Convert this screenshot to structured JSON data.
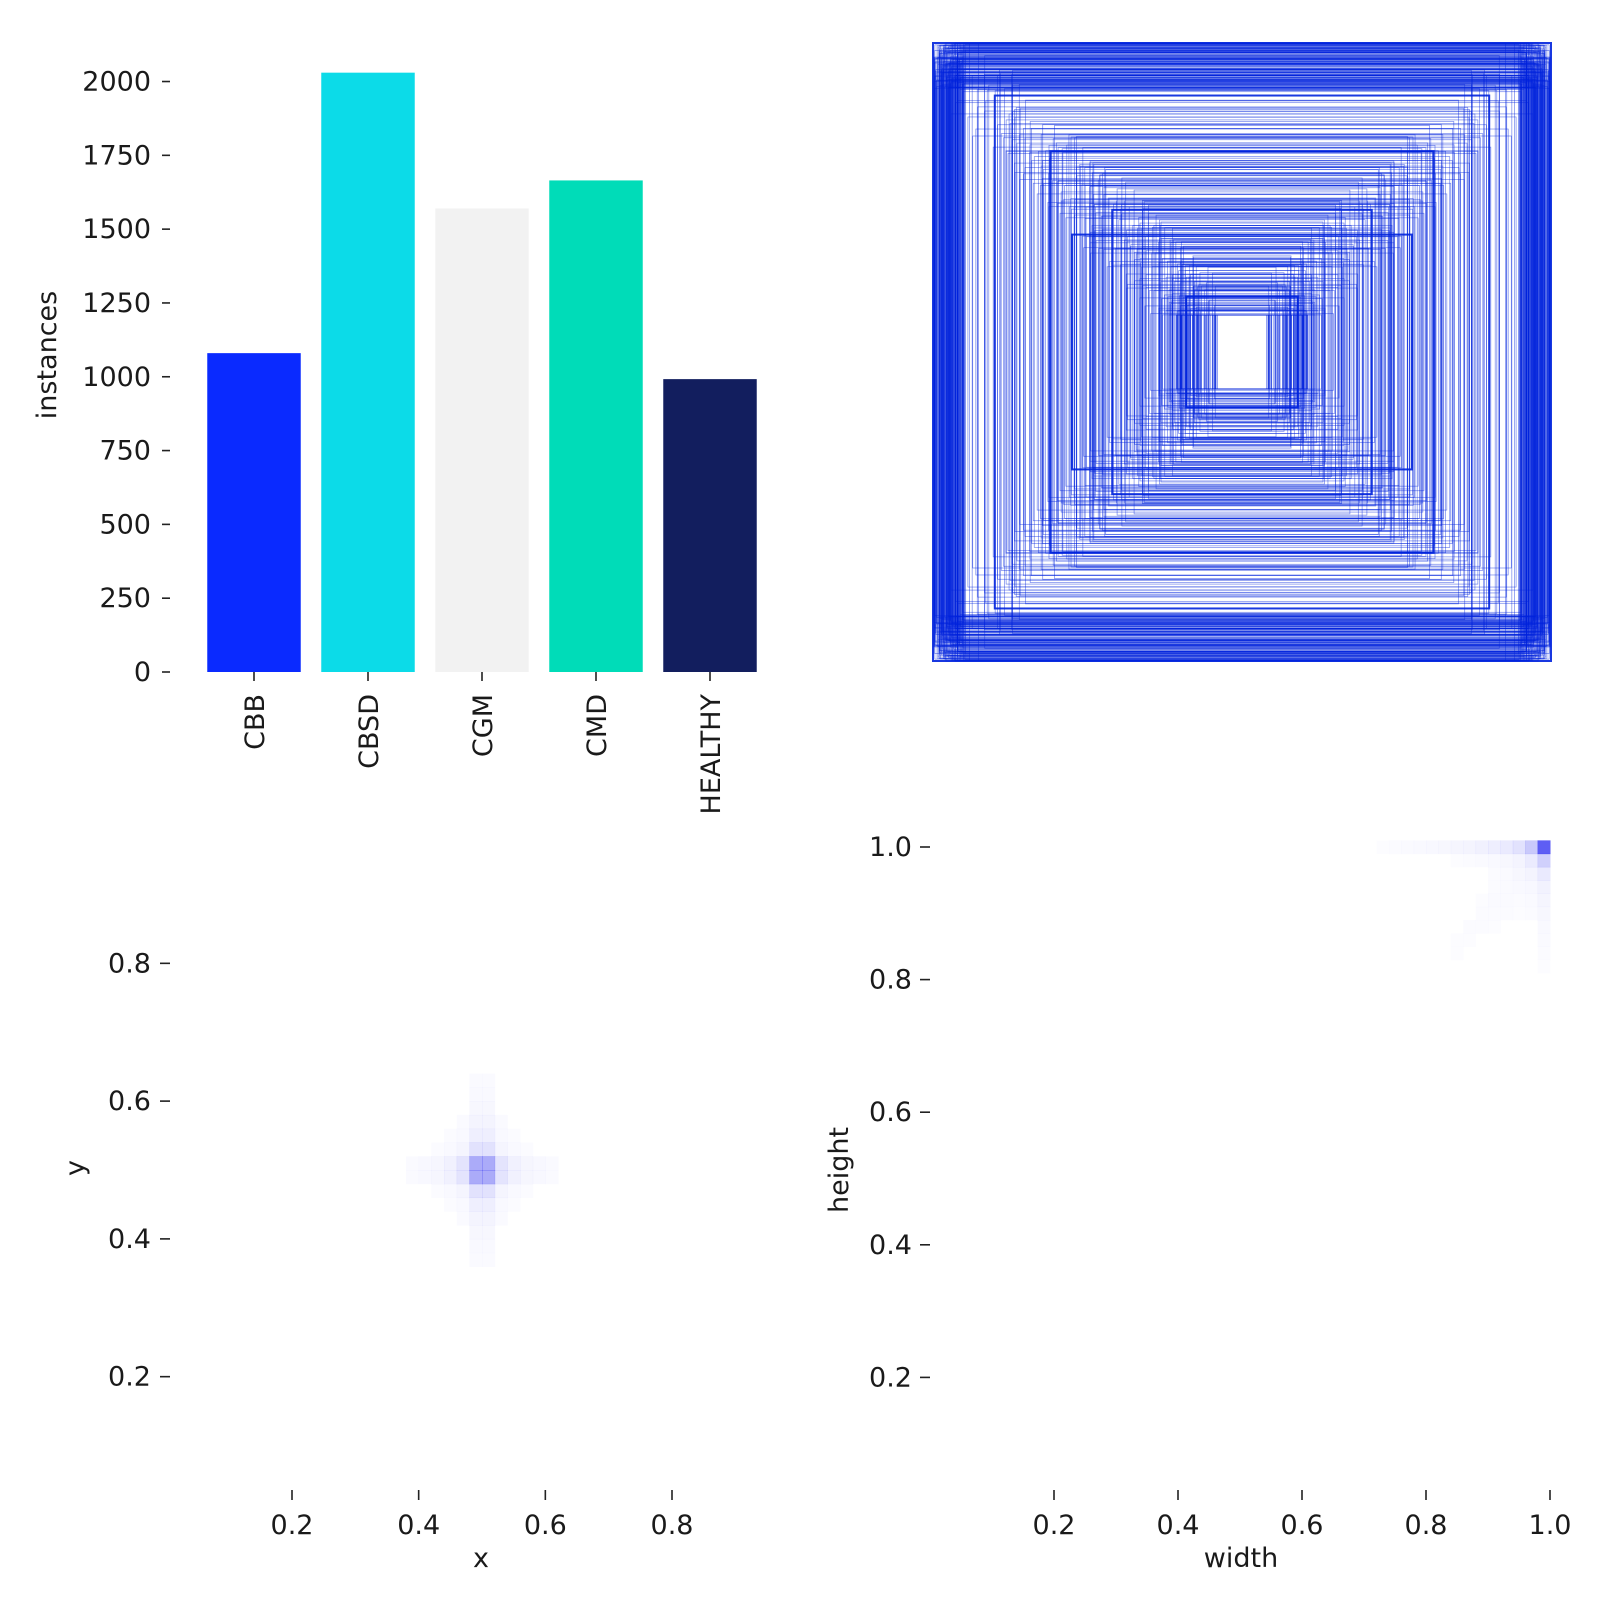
{
  "chart_data": [
    {
      "type": "bar",
      "id": "class-instances",
      "title": "",
      "xlabel": "",
      "ylabel": "instances",
      "categories": [
        "CBB",
        "CBSD",
        "CGM",
        "CMD",
        "HEALTHY"
      ],
      "values": [
        1080,
        2030,
        1570,
        1665,
        992
      ],
      "colors": [
        "#0a2aff",
        "#0cdbe8",
        "#f2f2f2",
        "#00dcb8",
        "#121e5e"
      ],
      "ylim": [
        0,
        2100
      ],
      "yticks": [
        0,
        250,
        500,
        750,
        1000,
        1250,
        1500,
        1750,
        2000
      ],
      "ytick_labels": [
        "0",
        "250",
        "500",
        "750",
        "1000",
        "1250",
        "1500",
        "1750",
        "2000"
      ]
    },
    {
      "type": "rectangles",
      "id": "box-overlay",
      "title": "",
      "description_color": "#0022dd",
      "note": "Normalized bounding boxes overlaid, centred at (0.5, 0.5), widths/heights concentrated near 1.0"
    },
    {
      "type": "heatmap",
      "id": "xy-density",
      "xlabel": "x",
      "ylabel": "y",
      "xlim": [
        0.05,
        0.95
      ],
      "ylim": [
        0.05,
        0.95
      ],
      "xticks": [
        0.2,
        0.4,
        0.6,
        0.8
      ],
      "xtick_labels": [
        "0.2",
        "0.4",
        "0.6",
        "0.8"
      ],
      "yticks": [
        0.2,
        0.4,
        0.6,
        0.8
      ],
      "ytick_labels": [
        "0.2",
        "0.4",
        "0.6",
        "0.8"
      ],
      "peak": [
        0.5,
        0.5
      ],
      "color": "#0000ee"
    },
    {
      "type": "heatmap",
      "id": "wh-density",
      "xlabel": "width",
      "ylabel": "height",
      "xlim": [
        0.0,
        1.0
      ],
      "ylim": [
        0.0,
        1.0
      ],
      "xticks": [
        0.2,
        0.4,
        0.6,
        0.8,
        1.0
      ],
      "xtick_labels": [
        "0.2",
        "0.4",
        "0.6",
        "0.8",
        "1.0"
      ],
      "yticks": [
        0.2,
        0.4,
        0.6,
        0.8,
        1.0
      ],
      "ytick_labels": [
        "0.2",
        "0.4",
        "0.6",
        "0.8",
        "1.0"
      ],
      "peak": [
        0.99,
        0.99
      ],
      "color": "#0000ee"
    }
  ]
}
